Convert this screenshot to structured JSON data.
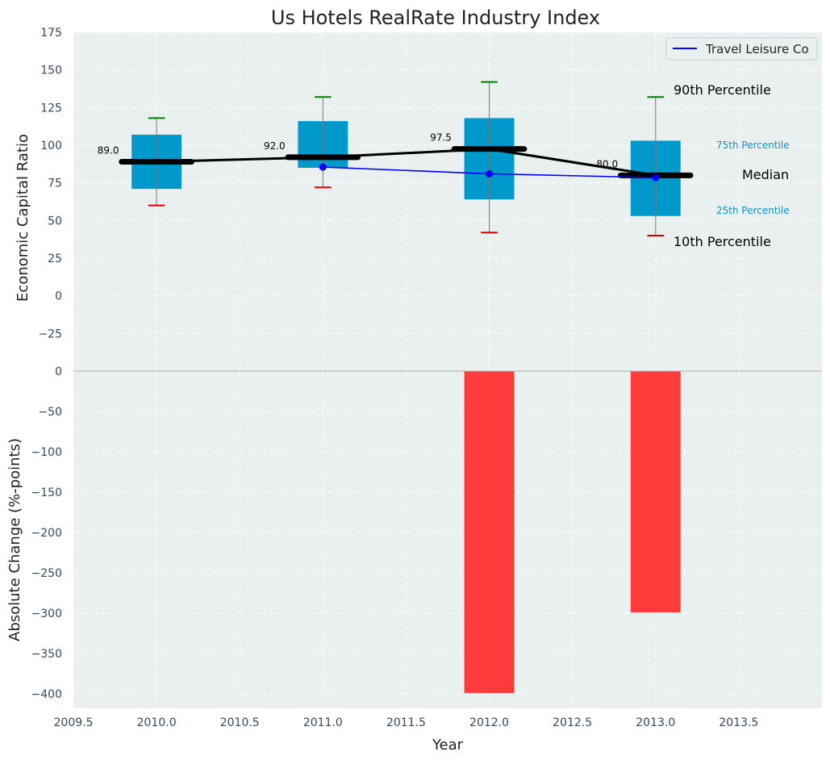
{
  "title": "Us Hotels RealRate Industry Index",
  "xlabel": "Year",
  "colors": {
    "panel_bg": "#eaeff0",
    "grid": "#ffffff",
    "box": "#0099cc",
    "median": "#000000",
    "company": "#0000ff",
    "whisker_top": "#008000",
    "whisker_bottom": "#dd0000",
    "change_bar": "#ff3b3b",
    "zero_line": "#b0b0b0"
  },
  "annotations": {
    "p90": "90th Percentile",
    "p75": "75th Percentile",
    "median": "Median",
    "p25": "25th Percentile",
    "p10": "10th Percentile"
  },
  "chart_data": [
    {
      "type": "box",
      "ylabel": "Economic Capital Ratio",
      "ylim": [
        -50,
        175
      ],
      "yticks": [
        -25,
        0,
        25,
        50,
        75,
        100,
        125,
        150,
        175
      ],
      "ytick_labels": [
        "−25",
        "0",
        "25",
        "50",
        "75",
        "100",
        "125",
        "150",
        "175"
      ],
      "xlim": [
        2009.5,
        2014.0
      ],
      "xticks": [
        2009.5,
        2010.0,
        2010.5,
        2011.0,
        2011.5,
        2012.0,
        2012.5,
        2013.0,
        2013.5
      ],
      "xtick_labels": [
        "2009.5",
        "2010.0",
        "2010.5",
        "2011.0",
        "2011.5",
        "2012.0",
        "2012.5",
        "2013.0",
        "2013.5"
      ],
      "grid": true,
      "legend_position": "top-right",
      "boxes": [
        {
          "x": 2010,
          "p10": 60,
          "p25": 71,
          "median": 89.0,
          "median_label": "89.0",
          "p75": 107,
          "p90": 118
        },
        {
          "x": 2011,
          "p10": 72,
          "p25": 85,
          "median": 92.0,
          "median_label": "92.0",
          "p75": 116,
          "p90": 132
        },
        {
          "x": 2012,
          "p10": 42,
          "p25": 64,
          "median": 97.5,
          "median_label": "97.5",
          "p75": 118,
          "p90": 142
        },
        {
          "x": 2013,
          "p10": 40,
          "p25": 53,
          "median": 80.0,
          "median_label": "80.0",
          "p75": 103,
          "p90": 132
        }
      ],
      "series": [
        {
          "name": "Travel Leisure Co",
          "x": [
            2011,
            2012,
            2013
          ],
          "values": [
            85.5,
            81,
            78.5
          ]
        }
      ]
    },
    {
      "type": "bar",
      "ylabel": "Absolute Change (%-points)",
      "ylim": [
        -418,
        0
      ],
      "yticks": [
        0,
        -50,
        -100,
        -150,
        -200,
        -250,
        -300,
        -350,
        -400
      ],
      "ytick_labels": [
        "0",
        "−50",
        "−100",
        "−150",
        "−200",
        "−250",
        "−300",
        "−350",
        "−400"
      ],
      "x": [
        2012,
        2013
      ],
      "values": [
        -399,
        -299
      ]
    }
  ]
}
